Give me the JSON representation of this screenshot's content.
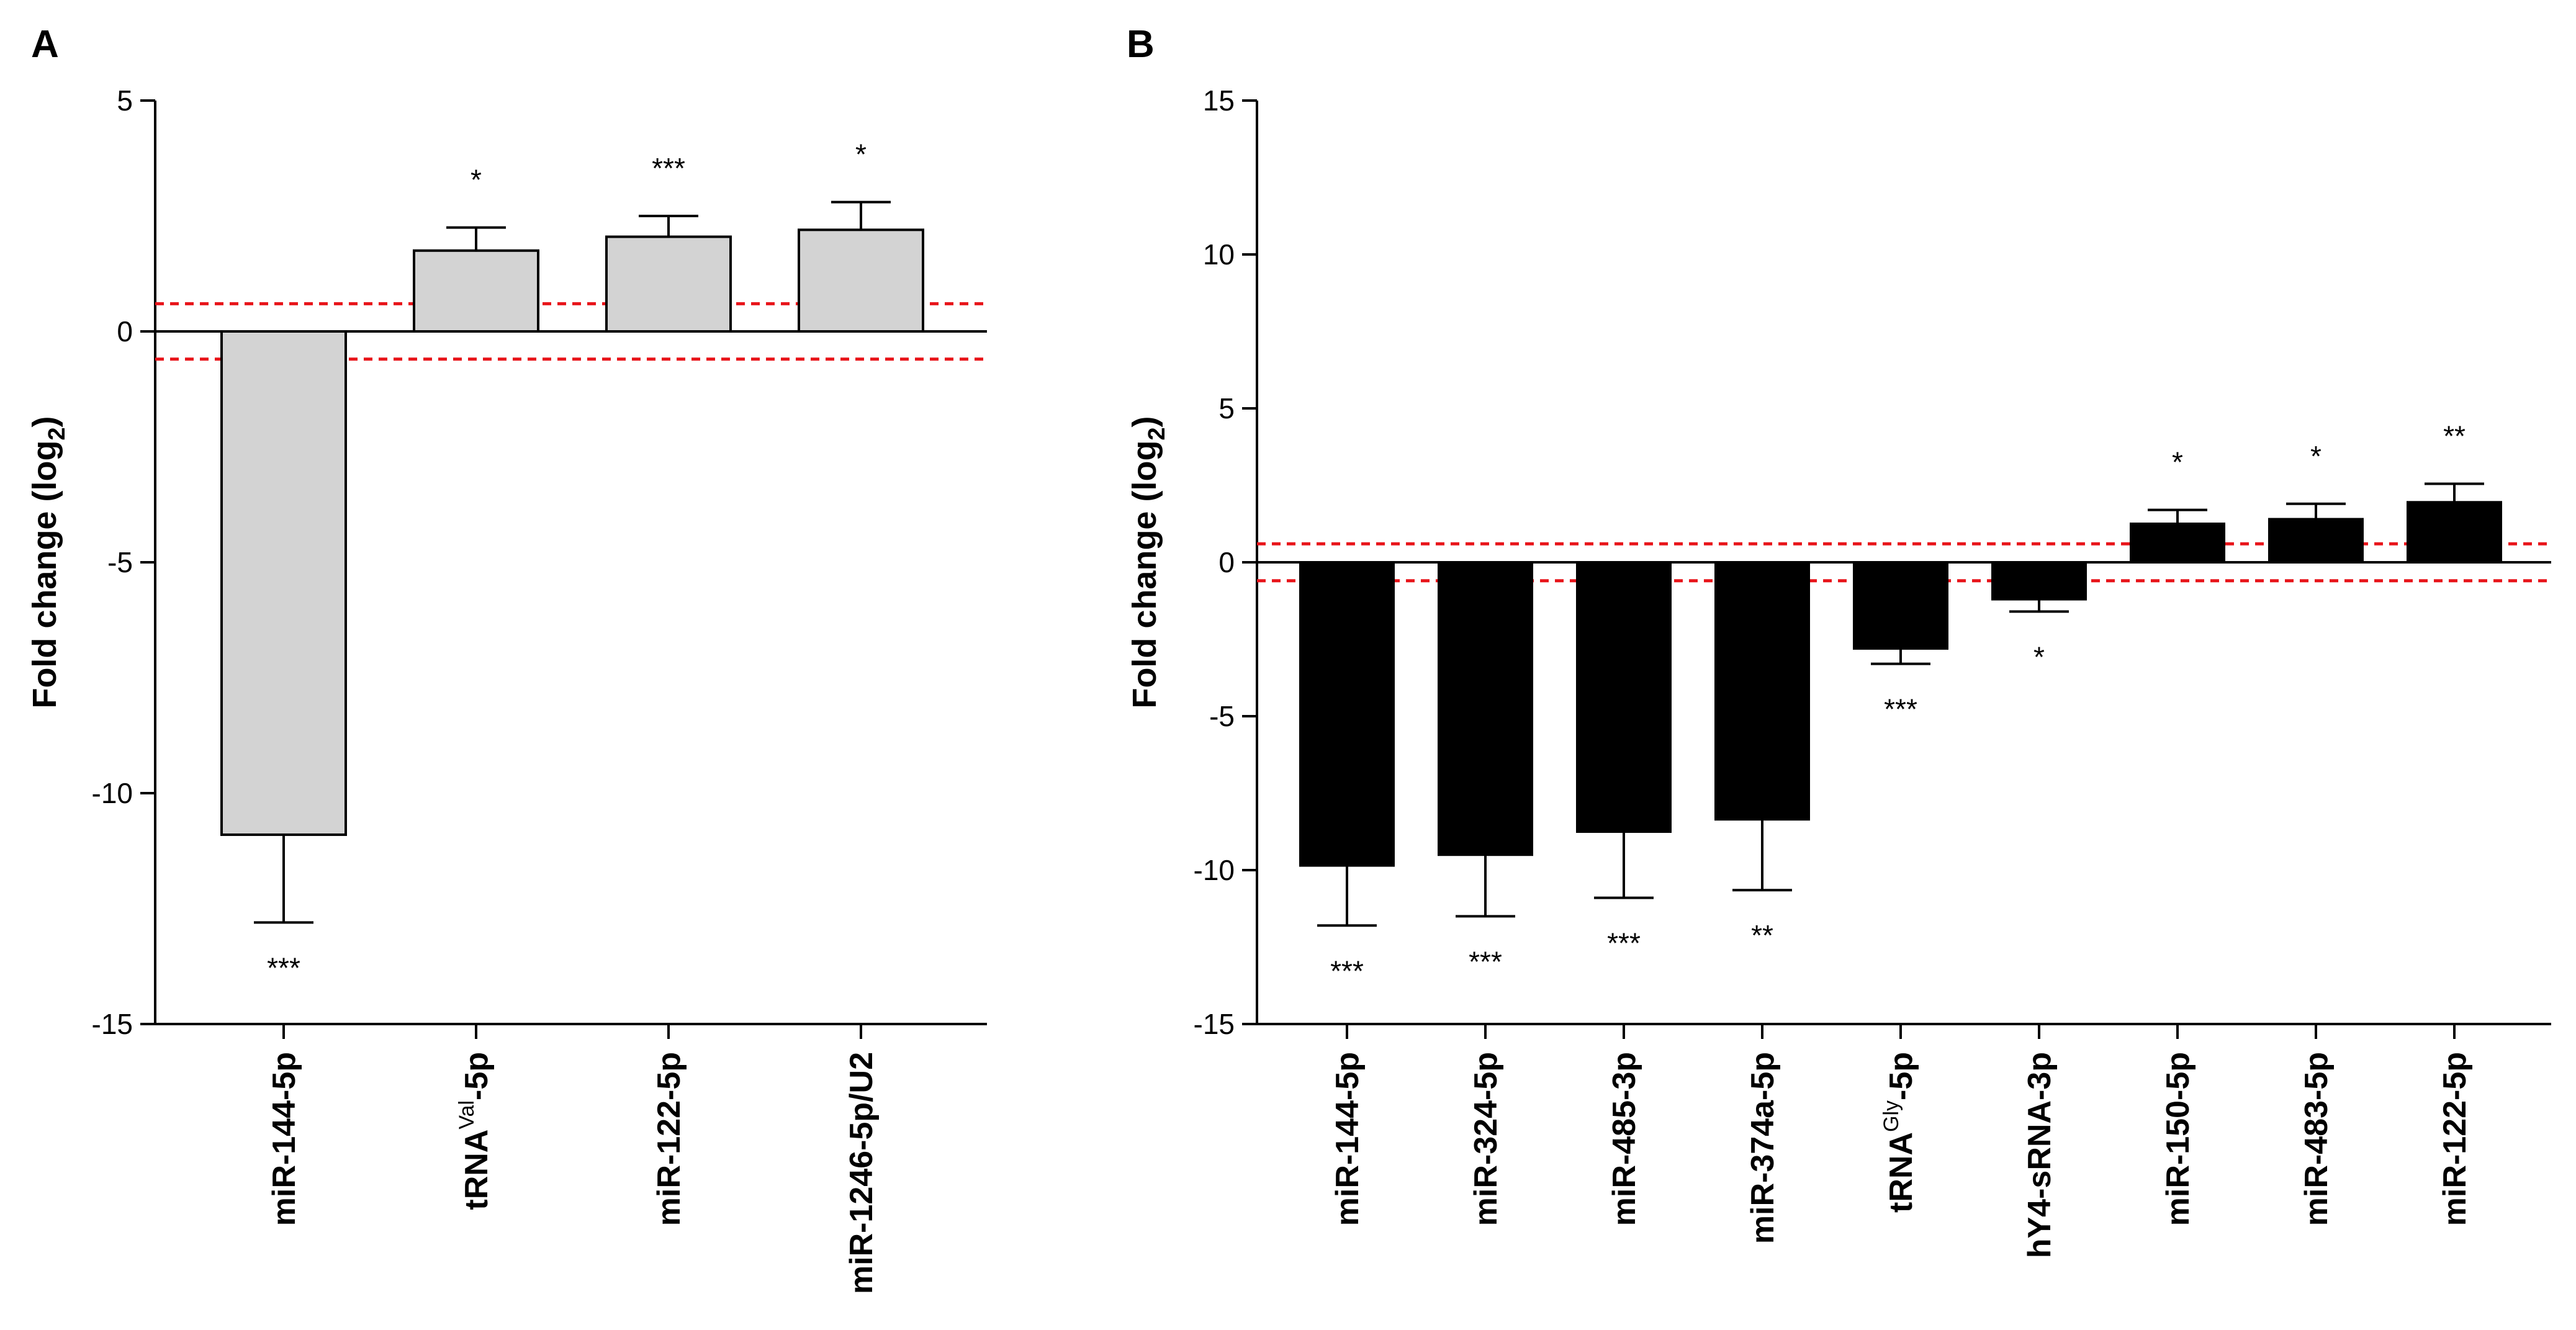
{
  "chart_data": [
    {
      "panel": "A",
      "type": "bar",
      "ylabel": "Fold change (log",
      "ylabel_subscript": "2",
      "ylabel_close": ")",
      "ylim": [
        -15,
        5
      ],
      "yticks": [
        5,
        0,
        -5,
        -10,
        -15
      ],
      "ytick_labels": [
        "5",
        "0",
        "-5",
        "-10",
        "-15"
      ],
      "bar_color": "#d3d3d3",
      "threshold_color": "#e8141a",
      "threshold": [
        0.6,
        -0.6
      ],
      "categories": [
        {
          "base": "miR-144-5p",
          "sup": "",
          "tail": ""
        },
        {
          "base": "tRNA",
          "sup": "Val",
          "tail": "-5p"
        },
        {
          "base": "miR-122-5p",
          "sup": "",
          "tail": ""
        },
        {
          "base": "miR-1246-5p/U2",
          "sup": "",
          "tail": ""
        }
      ],
      "values": [
        -10.9,
        1.75,
        2.05,
        2.2
      ],
      "errors": [
        1.9,
        0.5,
        0.45,
        0.6
      ],
      "significance": [
        "***",
        "*",
        "***",
        "*"
      ]
    },
    {
      "panel": "B",
      "type": "bar",
      "ylabel": "Fold change (log",
      "ylabel_subscript": "2",
      "ylabel_close": ")",
      "ylim": [
        -15,
        15
      ],
      "yticks": [
        15,
        10,
        5,
        0,
        -5,
        -10,
        -15
      ],
      "ytick_labels": [
        "15",
        "10",
        "5",
        "0",
        "-5",
        "-10",
        "-15"
      ],
      "bar_color": "#000000",
      "threshold_color": "#e8141a",
      "threshold": [
        0.6,
        -0.6
      ],
      "categories": [
        {
          "base": "miR-144-5p",
          "sup": "",
          "tail": ""
        },
        {
          "base": "miR-324-5p",
          "sup": "",
          "tail": ""
        },
        {
          "base": "miR-485-3p",
          "sup": "",
          "tail": ""
        },
        {
          "base": "miR-374a-5p",
          "sup": "",
          "tail": ""
        },
        {
          "base": "tRNA",
          "sup": "Gly",
          "tail": "-5p"
        },
        {
          "base": "hY4-sRNA-3p",
          "sup": "",
          "tail": ""
        },
        {
          "base": "miR-150-5p",
          "sup": "",
          "tail": ""
        },
        {
          "base": "miR-483-5p",
          "sup": "",
          "tail": ""
        },
        {
          "base": "miR-122-5p",
          "sup": "",
          "tail": ""
        }
      ],
      "values": [
        -9.85,
        -9.5,
        -8.75,
        -8.35,
        -2.8,
        -1.2,
        1.25,
        1.4,
        1.95
      ],
      "errors": [
        1.95,
        2.0,
        2.15,
        2.3,
        0.5,
        0.4,
        0.45,
        0.5,
        0.6
      ],
      "significance": [
        "***",
        "***",
        "***",
        "**",
        "***",
        "*",
        "*",
        "*",
        "**"
      ]
    }
  ]
}
